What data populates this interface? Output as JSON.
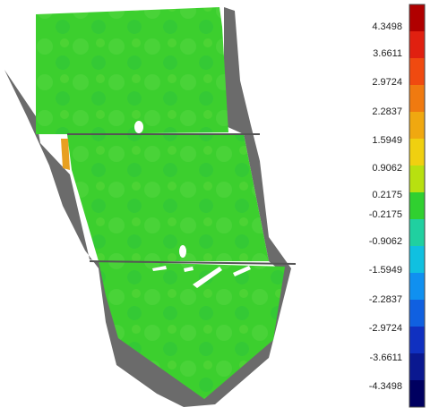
{
  "colorbar": {
    "labels": [
      "4.3498",
      "3.6611",
      "2.9724",
      "2.2837",
      "1.5949",
      "0.9062",
      "0.2175",
      "-0.2175",
      "-0.9062",
      "-1.5949",
      "-2.2837",
      "-2.9724",
      "-3.6611",
      "-4.3498"
    ]
  }
}
